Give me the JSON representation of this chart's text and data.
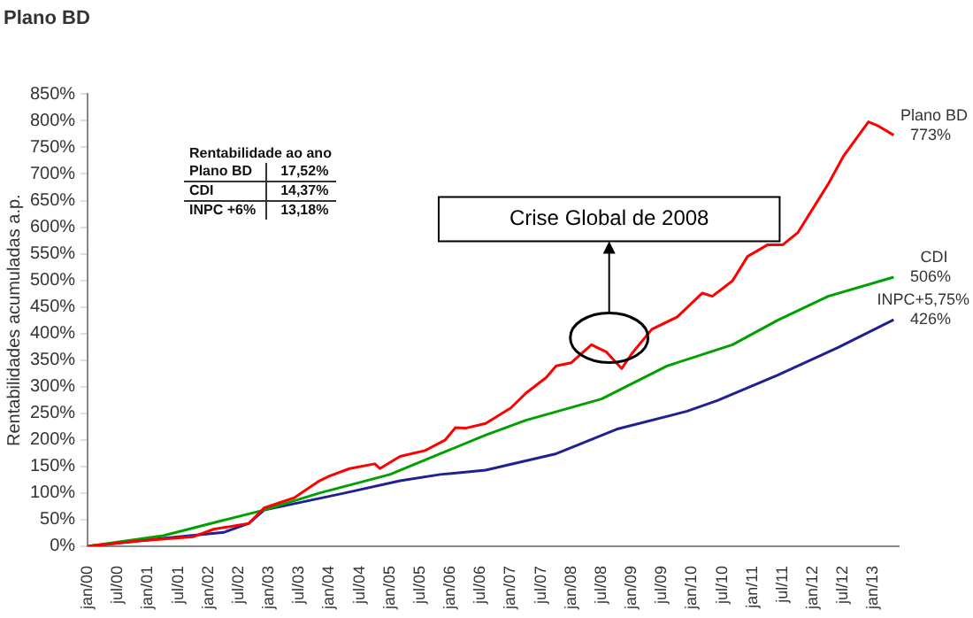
{
  "chart_data": {
    "type": "line",
    "title": "Plano BD",
    "ylabel": "Rentabilidades acumuladas a.p.",
    "xlim": [
      "2000-01",
      "2013-06"
    ],
    "xticks": [
      {
        "value": "2000-01",
        "label": "jan/00"
      },
      {
        "value": "2000-07",
        "label": "jul/00"
      },
      {
        "value": "2001-01",
        "label": "jan/01"
      },
      {
        "value": "2001-07",
        "label": "jul/01"
      },
      {
        "value": "2002-01",
        "label": "jan/02"
      },
      {
        "value": "2002-07",
        "label": "jul/02"
      },
      {
        "value": "2003-01",
        "label": "jan/03"
      },
      {
        "value": "2003-07",
        "label": "jul/03"
      },
      {
        "value": "2004-01",
        "label": "jan/04"
      },
      {
        "value": "2004-07",
        "label": "jul/04"
      },
      {
        "value": "2005-01",
        "label": "jan/05"
      },
      {
        "value": "2005-07",
        "label": "jul/05"
      },
      {
        "value": "2006-01",
        "label": "jan/06"
      },
      {
        "value": "2006-07",
        "label": "jul/06"
      },
      {
        "value": "2007-01",
        "label": "jan/07"
      },
      {
        "value": "2007-07",
        "label": "jul/07"
      },
      {
        "value": "2008-01",
        "label": "jan/08"
      },
      {
        "value": "2008-07",
        "label": "jul/08"
      },
      {
        "value": "2009-01",
        "label": "jan/09"
      },
      {
        "value": "2009-07",
        "label": "jul/09"
      },
      {
        "value": "2010-01",
        "label": "jan/10"
      },
      {
        "value": "2010-07",
        "label": "jul/10"
      },
      {
        "value": "2011-01",
        "label": "jan/11"
      },
      {
        "value": "2011-07",
        "label": "jul/11"
      },
      {
        "value": "2012-01",
        "label": "jan/12"
      },
      {
        "value": "2012-07",
        "label": "jul/12"
      },
      {
        "value": "2013-01",
        "label": "jan/13"
      }
    ],
    "ylim": [
      0,
      850
    ],
    "yticks": [
      {
        "value": 0,
        "label": "0%"
      },
      {
        "value": 50,
        "label": "50%"
      },
      {
        "value": 100,
        "label": "100%"
      },
      {
        "value": 150,
        "label": "150%"
      },
      {
        "value": 200,
        "label": "200%"
      },
      {
        "value": 250,
        "label": "250%"
      },
      {
        "value": 300,
        "label": "300%"
      },
      {
        "value": 350,
        "label": "350%"
      },
      {
        "value": 400,
        "label": "400%"
      },
      {
        "value": 450,
        "label": "450%"
      },
      {
        "value": 500,
        "label": "500%"
      },
      {
        "value": 550,
        "label": "550%"
      },
      {
        "value": 600,
        "label": "600%"
      },
      {
        "value": 650,
        "label": "650%"
      },
      {
        "value": 700,
        "label": "700%"
      },
      {
        "value": 750,
        "label": "750%"
      },
      {
        "value": 800,
        "label": "800%"
      },
      {
        "value": 850,
        "label": "850%"
      }
    ],
    "grid": false,
    "legend": false,
    "marker": "none",
    "line_style": "solid",
    "annotations": [
      "Rentabilidade ao ano",
      "Plano BD\t17,52%",
      "CDI\t14,37%",
      "INPC +6%\t13,18%",
      "Crise Global de 2008"
    ],
    "series": [
      {
        "name": "Plano BD",
        "color": "#ff0000",
        "x": [
          "2000-01",
          "2000-11",
          "2001-10",
          "2002-02",
          "2002-09",
          "2002-12",
          "2003-06",
          "2003-11",
          "2004-01",
          "2004-05",
          "2004-10",
          "2004-11",
          "2005-03",
          "2005-08",
          "2005-12",
          "2006-02",
          "2006-04",
          "2006-08",
          "2007-01",
          "2007-04",
          "2007-08",
          "2007-10",
          "2008-01",
          "2008-05",
          "2008-08",
          "2008-11",
          "2009-01",
          "2009-05",
          "2009-10",
          "2010-03",
          "2010-05",
          "2010-09",
          "2010-12",
          "2011-04",
          "2011-07",
          "2011-10",
          "2012-04",
          "2012-07",
          "2012-12",
          "2013-02",
          "2013-05"
        ],
        "values": [
          0,
          10,
          18,
          32,
          43,
          72,
          91,
          123,
          132,
          146,
          155,
          146,
          169,
          180,
          200,
          223,
          222,
          231,
          260,
          288,
          317,
          339,
          345,
          379,
          365,
          334,
          362,
          408,
          431,
          476,
          470,
          499,
          545,
          567,
          567,
          590,
          681,
          733,
          798,
          790,
          773
        ],
        "value_labels": [
          null,
          null,
          null,
          null,
          null,
          null,
          null,
          null,
          null,
          null,
          null,
          null,
          null,
          null,
          null,
          null,
          null,
          null,
          null,
          null,
          null,
          null,
          null,
          null,
          null,
          null,
          null,
          null,
          null,
          null,
          null,
          null,
          null,
          null,
          null,
          null,
          null,
          null,
          null,
          null,
          "773%"
        ]
      },
      {
        "name": "CDI",
        "color": "#00a000",
        "x": [
          "2000-01",
          "2001-04",
          "2002-04",
          "2002-12",
          "2003-11",
          "2005-01",
          "2005-11",
          "2006-08",
          "2007-04",
          "2008-07",
          "2009-08",
          "2010-09",
          "2011-06",
          "2012-04",
          "2013-05"
        ],
        "values": [
          0,
          20,
          49,
          68,
          100,
          135,
          174,
          209,
          237,
          277,
          339,
          379,
          425,
          470,
          506
        ],
        "value_labels": [
          null,
          null,
          null,
          null,
          null,
          null,
          null,
          null,
          null,
          null,
          null,
          null,
          null,
          null,
          "506%"
        ]
      },
      {
        "name": "INPC+5,75%",
        "color": "#202090",
        "x": [
          "2000-01",
          "2001-04",
          "2002-04",
          "2002-09",
          "2002-12",
          "2003-05",
          "2004-04",
          "2005-03",
          "2005-11",
          "2006-08",
          "2007-10",
          "2008-10",
          "2009-12",
          "2010-06",
          "2011-06",
          "2012-06",
          "2013-05"
        ],
        "values": [
          0,
          15,
          26,
          43,
          68,
          78,
          100,
          123,
          135,
          143,
          174,
          220,
          254,
          274,
          322,
          374,
          426
        ],
        "value_labels": [
          null,
          null,
          null,
          null,
          null,
          null,
          null,
          null,
          null,
          null,
          null,
          null,
          null,
          null,
          null,
          null,
          "426%"
        ]
      }
    ]
  }
}
